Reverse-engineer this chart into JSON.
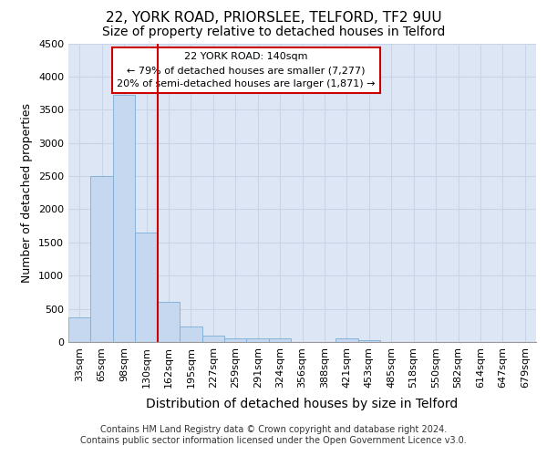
{
  "title_line1": "22, YORK ROAD, PRIORSLEE, TELFORD, TF2 9UU",
  "title_line2": "Size of property relative to detached houses in Telford",
  "xlabel": "Distribution of detached houses by size in Telford",
  "ylabel": "Number of detached properties",
  "footer_line1": "Contains HM Land Registry data © Crown copyright and database right 2024.",
  "footer_line2": "Contains public sector information licensed under the Open Government Licence v3.0.",
  "categories": [
    "33sqm",
    "65sqm",
    "98sqm",
    "130sqm",
    "162sqm",
    "195sqm",
    "227sqm",
    "259sqm",
    "291sqm",
    "324sqm",
    "356sqm",
    "388sqm",
    "421sqm",
    "453sqm",
    "485sqm",
    "518sqm",
    "550sqm",
    "582sqm",
    "614sqm",
    "647sqm",
    "679sqm"
  ],
  "values": [
    375,
    2500,
    3725,
    1650,
    600,
    240,
    100,
    60,
    50,
    50,
    0,
    0,
    50,
    30,
    0,
    0,
    0,
    0,
    0,
    0,
    0
  ],
  "bar_color": "#c5d8f0",
  "bar_edge_color": "#7aadd4",
  "vline_color": "#cc0000",
  "annotation_text": "22 YORK ROAD: 140sqm\n← 79% of detached houses are smaller (7,277)\n20% of semi-detached houses are larger (1,871) →",
  "annotation_box_color": "#ffffff",
  "annotation_box_edge": "#cc0000",
  "ylim": [
    0,
    4500
  ],
  "yticks": [
    0,
    500,
    1000,
    1500,
    2000,
    2500,
    3000,
    3500,
    4000,
    4500
  ],
  "grid_color": "#c8d4e8",
  "bg_color": "#dde6f4",
  "title_fontsize": 11,
  "subtitle_fontsize": 10,
  "xlabel_fontsize": 10,
  "ylabel_fontsize": 9,
  "tick_fontsize": 8,
  "footer_fontsize": 7
}
